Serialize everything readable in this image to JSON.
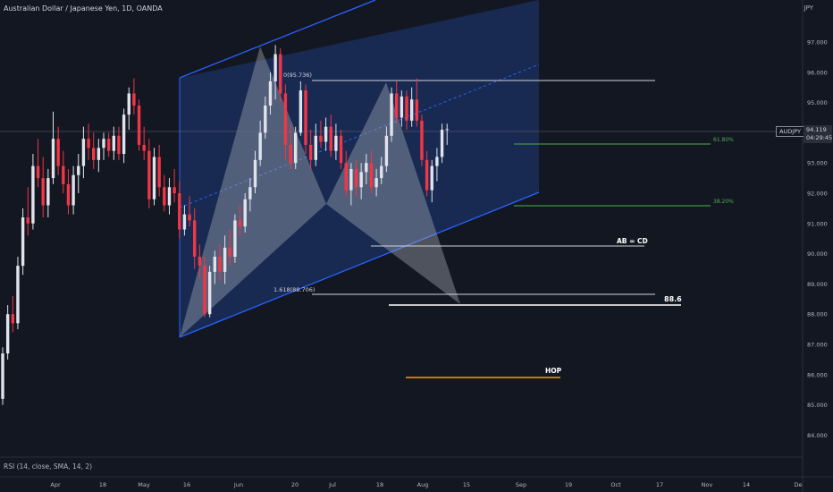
{
  "header": {
    "symbol_title": "Australian Dollar / Japanese Yen, 1D, OANDA",
    "currency": "JPY"
  },
  "indicator": {
    "rsi_label": "RSI (14, close, SMA, 14, 2)"
  },
  "price_scale": {
    "ticks": [
      "97.000",
      "96.000",
      "95.000",
      "93.000",
      "92.000",
      "91.000",
      "90.000",
      "89.000",
      "88.000",
      "87.000",
      "86.000",
      "85.000",
      "84.000"
    ]
  },
  "symbol_tag": "AUDJPY",
  "last_price": {
    "value": "94.119",
    "countdown": "04:29:45"
  },
  "time_axis": {
    "labels": [
      "Apr",
      "18",
      "May",
      "16",
      "Jun",
      "20",
      "Jul",
      "18",
      "Aug",
      "15",
      "Sep",
      "19",
      "Oct",
      "17",
      "Nov",
      "14",
      "De"
    ]
  },
  "annotations": {
    "fib_top": "0(95.736)",
    "fib_618": "61.80%",
    "fib_382": "38.20%",
    "ab_cd": "AB = CD",
    "ext_1618": "1.618(88.706)",
    "target": "88.6",
    "hop": "HOP"
  },
  "colors": {
    "background": "#131722",
    "up_candle": "#e0e3eb",
    "down_candle": "#f23645",
    "channel_line": "#2962ff",
    "channel_fill": "#1e3a78",
    "fib_line": "#4caf50",
    "hop_line": "#ff9800"
  },
  "chart_data": {
    "type": "candlestick",
    "symbol": "AUDJPY",
    "timeframe": "1D",
    "y_range": [
      83.4,
      97.9
    ],
    "last_price": 94.119,
    "levels": [
      {
        "label": "0(95.736)",
        "price": 95.736
      },
      {
        "label": "61.80%",
        "price": 93.68
      },
      {
        "label": "38.20%",
        "price": 91.62
      },
      {
        "label": "AB = CD",
        "price": 90.3
      },
      {
        "label": "1.618(88.706)",
        "price": 88.706
      },
      {
        "label": "88.6",
        "price": 88.4
      },
      {
        "label": "HOP",
        "price": 86.0
      }
    ],
    "candles": [
      [
        85.2,
        86.9,
        85.0,
        86.7
      ],
      [
        86.7,
        88.3,
        86.5,
        88.0
      ],
      [
        88.0,
        88.6,
        87.4,
        87.7
      ],
      [
        87.7,
        89.9,
        87.5,
        89.6
      ],
      [
        89.6,
        91.5,
        89.3,
        91.2
      ],
      [
        91.2,
        92.2,
        90.6,
        91.0
      ],
      [
        91.0,
        93.3,
        90.8,
        92.9
      ],
      [
        92.9,
        93.8,
        92.2,
        92.5
      ],
      [
        92.5,
        93.2,
        91.2,
        91.6
      ],
      [
        91.6,
        92.8,
        91.2,
        92.5
      ],
      [
        92.5,
        94.7,
        92.3,
        93.8
      ],
      [
        93.8,
        94.2,
        92.6,
        92.9
      ],
      [
        92.9,
        93.4,
        92.0,
        92.3
      ],
      [
        92.3,
        92.8,
        91.3,
        91.6
      ],
      [
        91.6,
        92.9,
        91.3,
        92.6
      ],
      [
        92.6,
        93.3,
        92.0,
        92.9
      ],
      [
        92.9,
        94.2,
        92.5,
        93.8
      ],
      [
        93.8,
        94.3,
        93.1,
        93.5
      ],
      [
        93.5,
        94.0,
        92.8,
        93.1
      ],
      [
        93.1,
        93.8,
        92.7,
        93.5
      ],
      [
        93.5,
        94.0,
        93.1,
        93.8
      ],
      [
        93.8,
        94.0,
        93.2,
        93.4
      ],
      [
        93.4,
        94.2,
        93.1,
        93.9
      ],
      [
        93.9,
        94.2,
        93.1,
        93.3
      ],
      [
        93.3,
        94.8,
        93.0,
        94.6
      ],
      [
        94.6,
        95.5,
        94.1,
        95.3
      ],
      [
        95.3,
        95.8,
        94.6,
        94.9
      ],
      [
        94.9,
        95.1,
        93.4,
        93.6
      ],
      [
        93.6,
        94.2,
        93.1,
        93.4
      ],
      [
        93.4,
        93.8,
        91.5,
        91.8
      ],
      [
        91.8,
        93.5,
        91.6,
        93.2
      ],
      [
        93.2,
        93.6,
        91.9,
        92.2
      ],
      [
        92.2,
        92.6,
        91.4,
        91.6
      ],
      [
        91.6,
        92.5,
        91.3,
        92.2
      ],
      [
        92.2,
        92.8,
        91.7,
        92.0
      ],
      [
        92.0,
        92.4,
        90.5,
        90.8
      ],
      [
        90.8,
        91.6,
        90.6,
        91.3
      ],
      [
        91.3,
        91.9,
        90.9,
        91.1
      ],
      [
        91.1,
        91.5,
        89.5,
        89.9
      ],
      [
        89.9,
        90.3,
        89.2,
        89.6
      ],
      [
        89.6,
        89.9,
        87.9,
        88.0
      ],
      [
        88.0,
        89.6,
        87.9,
        89.4
      ],
      [
        89.4,
        90.1,
        89.0,
        89.9
      ],
      [
        89.9,
        90.3,
        89.1,
        89.4
      ],
      [
        89.4,
        90.6,
        89.0,
        90.2
      ],
      [
        90.2,
        90.8,
        89.6,
        89.9
      ],
      [
        89.9,
        91.3,
        89.7,
        91.1
      ],
      [
        91.1,
        91.6,
        90.6,
        90.9
      ],
      [
        90.9,
        92.0,
        90.7,
        91.8
      ],
      [
        91.8,
        92.5,
        91.4,
        92.2
      ],
      [
        92.2,
        93.4,
        92.0,
        93.1
      ],
      [
        93.1,
        94.4,
        92.9,
        94.0
      ],
      [
        94.0,
        95.2,
        93.8,
        94.9
      ],
      [
        94.9,
        96.0,
        94.6,
        95.7
      ],
      [
        95.7,
        96.9,
        95.1,
        96.6
      ],
      [
        96.6,
        96.8,
        95.0,
        95.3
      ],
      [
        95.3,
        95.6,
        93.1,
        93.6
      ],
      [
        93.6,
        94.3,
        92.8,
        93.0
      ],
      [
        93.0,
        94.2,
        92.8,
        94.0
      ],
      [
        94.0,
        95.7,
        93.9,
        95.4
      ],
      [
        95.4,
        95.6,
        93.3,
        93.6
      ],
      [
        93.6,
        94.1,
        92.8,
        93.1
      ],
      [
        93.1,
        94.3,
        92.9,
        93.9
      ],
      [
        93.9,
        94.4,
        93.5,
        93.7
      ],
      [
        93.7,
        94.5,
        93.4,
        94.2
      ],
      [
        94.2,
        94.6,
        93.2,
        93.4
      ],
      [
        93.4,
        94.3,
        93.1,
        93.9
      ],
      [
        93.9,
        94.1,
        92.8,
        93.0
      ],
      [
        93.0,
        93.4,
        91.9,
        92.1
      ],
      [
        92.1,
        93.0,
        91.6,
        92.8
      ],
      [
        92.8,
        93.1,
        91.9,
        92.2
      ],
      [
        92.2,
        93.0,
        91.8,
        92.7
      ],
      [
        92.7,
        93.3,
        92.3,
        93.0
      ],
      [
        93.0,
        93.4,
        92.0,
        92.2
      ],
      [
        92.2,
        92.8,
        91.9,
        92.5
      ],
      [
        92.5,
        93.2,
        92.3,
        92.9
      ],
      [
        92.9,
        94.2,
        92.7,
        93.9
      ],
      [
        93.9,
        95.5,
        93.7,
        95.3
      ],
      [
        95.3,
        95.7,
        94.3,
        94.5
      ],
      [
        94.5,
        95.4,
        94.2,
        95.2
      ],
      [
        95.2,
        95.4,
        94.1,
        94.4
      ],
      [
        94.4,
        95.5,
        94.2,
        95.1
      ],
      [
        95.1,
        95.8,
        94.2,
        94.4
      ],
      [
        94.4,
        94.6,
        92.9,
        93.1
      ],
      [
        93.1,
        93.4,
        91.9,
        92.1
      ],
      [
        92.1,
        93.1,
        91.7,
        92.9
      ],
      [
        92.9,
        93.5,
        92.4,
        93.2
      ],
      [
        93.2,
        94.3,
        93.0,
        94.1
      ],
      [
        94.1,
        94.3,
        93.6,
        94.119
      ]
    ]
  }
}
